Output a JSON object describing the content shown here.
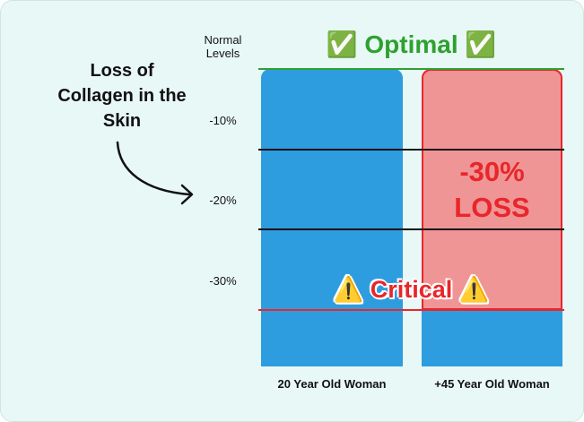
{
  "chart_data": {
    "type": "bar",
    "categories": [
      "20 Year Old Woman",
      "+45 Year Old Woman"
    ],
    "values": [
      0,
      -30
    ],
    "color": "#2e9de0",
    "loss": {
      "values": [
        null,
        -30
      ],
      "value_labels": [
        null,
        "-30% LOSS"
      ],
      "color": "#f09595",
      "edge_color": "#e8262b"
    },
    "ylim": [
      -37,
      0
    ],
    "yticks": [
      {
        "value": 0,
        "label": "Normal Levels"
      },
      {
        "value": -10,
        "label": "-10%"
      },
      {
        "value": -20,
        "label": "-20%"
      },
      {
        "value": -30,
        "label": "-30%"
      }
    ],
    "reference_lines": [
      {
        "value": 0,
        "label": "✅ Optimal ✅",
        "color": "#2ea12e"
      },
      {
        "value": -30,
        "label": "⚠️ Critical ⚠️",
        "color": "#e8262b"
      }
    ],
    "annotation": "Loss of Collagen in the Skin"
  }
}
